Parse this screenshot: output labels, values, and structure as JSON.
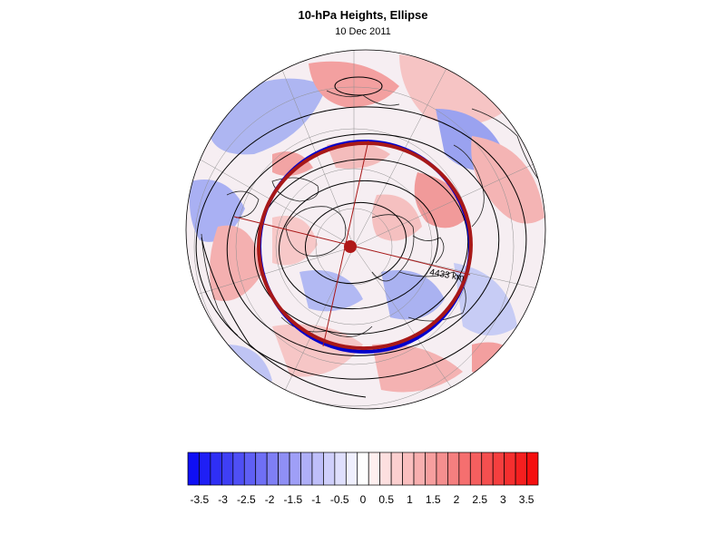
{
  "chart_data": {
    "type": "heatmap",
    "title": "10-hPa Heights, Ellipse",
    "subtitle": "10 Dec 2011",
    "projection": "polar-stereographic",
    "annotation": "4433 km",
    "colorbar": {
      "min": -3.75,
      "max": 3.75,
      "step": 0.25,
      "tick_labels": [
        "-3.5",
        "-3",
        "-2.5",
        "-2",
        "-1.5",
        "-1",
        "-0.5",
        "0",
        "0.5",
        "1",
        "1.5",
        "2",
        "2.5",
        "3",
        "3.5"
      ],
      "colors": [
        "#0f0ff5",
        "#1f1ff5",
        "#2f2ff5",
        "#3f3ff5",
        "#4f4ff5",
        "#5f5ff5",
        "#6f6ff5",
        "#7f7ff5",
        "#8f8ff5",
        "#9f9ff7",
        "#afaff8",
        "#bfbffa",
        "#cfcffb",
        "#dfdffd",
        "#efeffe",
        "#fefefe",
        "#feefef",
        "#fddfdf",
        "#fbcfcf",
        "#fabfbf",
        "#f8afaf",
        "#f79f9f",
        "#f58f8f",
        "#f57f7f",
        "#f56f6f",
        "#f55f5f",
        "#f54f4f",
        "#f53f3f",
        "#f52f2f",
        "#f51f1f",
        "#f50f0f"
      ]
    },
    "colors": {
      "observed_contour": "#0000cc",
      "ellipse": "#a81818",
      "height_contours": "#000000"
    }
  }
}
